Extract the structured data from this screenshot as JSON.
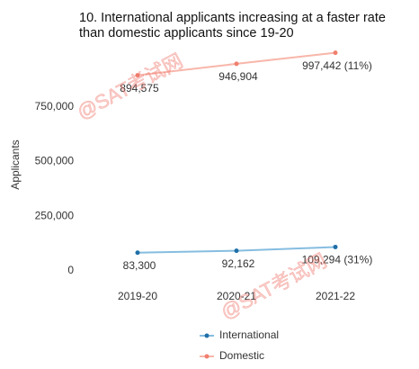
{
  "chart_data": {
    "type": "line",
    "title": [
      "10. International applicants increasing at a faster rate",
      "than domestic applicants since 19-20"
    ],
    "y_label": "Applicants",
    "categories": [
      "2019-20",
      "2020-21",
      "2021-22"
    ],
    "series": [
      {
        "name": "International",
        "color": "#1f6fa8",
        "line_color": "#86bde0",
        "values": [
          83300,
          92162,
          109294
        ],
        "value_labels": [
          "83,300",
          "92,162",
          "109,294 (31%)"
        ]
      },
      {
        "name": "Domestic",
        "color": "#f07f6e",
        "line_color": "#f8b6aa",
        "values": [
          894575,
          946904,
          997442
        ],
        "value_labels": [
          "894,575",
          "946,904",
          "997,442 (11%)"
        ]
      }
    ],
    "ylim": [
      0,
      1000000
    ],
    "yticks": [
      {
        "value": 0,
        "label": "0"
      },
      {
        "value": 250000,
        "label": "250,000"
      },
      {
        "value": 500000,
        "label": "500,000"
      },
      {
        "value": 750000,
        "label": "750,000"
      }
    ],
    "watermarks": [
      "@SAT考试网",
      "@SAT考试网"
    ]
  }
}
